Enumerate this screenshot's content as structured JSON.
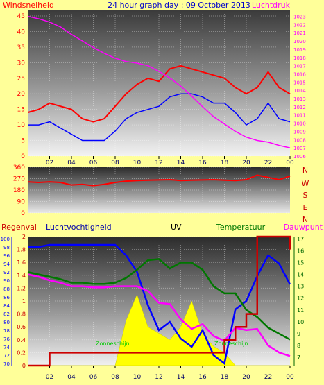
{
  "title": "24 hour graph day : 09 October 2013",
  "colors": {
    "background": "#ffff99",
    "red": "#ff0000",
    "magenta": "#ff00ff",
    "blue": "#0000ff",
    "green": "#007700",
    "darkred": "#cc0000",
    "yellow": "#ffff00",
    "black": "#000000"
  },
  "x_ticks": [
    "02",
    "04",
    "06",
    "08",
    "10",
    "12",
    "14",
    "16",
    "18",
    "20",
    "22",
    "00"
  ],
  "chart_data": [
    {
      "type": "line",
      "name": "wind-pressure",
      "left_label": "Windsnelheid",
      "right_label": "Luchtdruk",
      "left_ticks": [
        0,
        5,
        10,
        15,
        20,
        25,
        30,
        35,
        40,
        45
      ],
      "right_ticks": [
        1006,
        1007,
        1008,
        1009,
        1010,
        1011,
        1012,
        1013,
        1014,
        1015,
        1016,
        1017,
        1018,
        1019,
        1020,
        1021,
        1022,
        1023
      ],
      "ylim_left": [
        0,
        47
      ],
      "ylim_right": [
        1006,
        1023.8
      ],
      "x": [
        0,
        1,
        2,
        3,
        4,
        5,
        6,
        7,
        8,
        9,
        10,
        11,
        12,
        13,
        14,
        15,
        16,
        17,
        18,
        19,
        20,
        21,
        22,
        23,
        24
      ],
      "series": [
        {
          "axis": "left",
          "color": "red",
          "values": [
            14,
            15,
            17,
            16,
            15,
            12,
            11,
            12,
            16,
            20,
            23,
            25,
            24,
            28,
            29,
            28,
            27,
            26,
            25,
            22,
            20,
            22,
            27,
            22,
            20
          ]
        },
        {
          "axis": "left",
          "color": "blue",
          "values": [
            10,
            10,
            11,
            9,
            7,
            5,
            5,
            5,
            8,
            12,
            14,
            15,
            16,
            19,
            20,
            20,
            19,
            17,
            17,
            14,
            10,
            12,
            17,
            12,
            11
          ]
        },
        {
          "axis": "right",
          "color": "magenta",
          "values": [
            1023,
            1022.7,
            1022.3,
            1021.7,
            1020.8,
            1020,
            1019.2,
            1018.5,
            1017.9,
            1017.5,
            1017.3,
            1017,
            1016.3,
            1015.5,
            1014.5,
            1013.3,
            1012,
            1010.8,
            1009.9,
            1009,
            1008.3,
            1007.9,
            1007.7,
            1007.3,
            1007
          ]
        }
      ]
    },
    {
      "type": "line",
      "name": "wind-direction",
      "left_ticks": [
        0,
        90,
        180,
        270,
        360
      ],
      "right_ticks": [
        "N",
        "W",
        "S",
        "E",
        "N"
      ],
      "ylim": [
        0,
        360
      ],
      "x": [
        0,
        1,
        2,
        3,
        4,
        5,
        6,
        7,
        8,
        9,
        10,
        11,
        12,
        13,
        14,
        15,
        16,
        17,
        18,
        19,
        20,
        21,
        22,
        23,
        24
      ],
      "series": [
        {
          "color": "red",
          "values": [
            245,
            240,
            245,
            240,
            220,
            225,
            215,
            225,
            240,
            250,
            255,
            258,
            260,
            262,
            255,
            258,
            260,
            262,
            258,
            255,
            262,
            298,
            280,
            262,
            290
          ]
        }
      ]
    },
    {
      "type": "line",
      "name": "humidity-rain-uv-temperature",
      "labels": {
        "rain": "Regenval",
        "humidity": "Luchtvochtigheid",
        "uv": "UV",
        "temperature": "Temperatuur",
        "dewpoint": "Dauwpunt"
      },
      "rain_ticks": [
        0,
        0.2,
        0.4,
        0.6,
        0.8,
        1,
        1.2,
        1.4,
        1.6,
        1.8,
        2
      ],
      "humidity_ticks": [
        70,
        72,
        74,
        76,
        78,
        80,
        82,
        84,
        86,
        88,
        90,
        92,
        94,
        96,
        98,
        100
      ],
      "temperature_ticks": [
        7,
        8,
        9,
        10,
        11,
        12,
        13,
        14,
        15,
        16,
        17
      ],
      "ylim_humidity": [
        69.5,
        100.5
      ],
      "ylim_temperature": [
        6.3,
        17.2
      ],
      "ylim_rain": [
        0,
        2
      ],
      "annotations": [
        "Zonneschijn",
        "Zonneschijn"
      ],
      "x": [
        0,
        1,
        2,
        3,
        4,
        5,
        6,
        7,
        8,
        9,
        10,
        11,
        12,
        13,
        14,
        15,
        16,
        17,
        18,
        19,
        20,
        21,
        22,
        23,
        24
      ],
      "series": [
        {
          "name": "Luchtvochtigheid",
          "axis": "humidity",
          "color": "blue",
          "values": [
            98,
            98,
            98.5,
            98.5,
            98.5,
            98.5,
            98.5,
            98.5,
            98.5,
            96,
            92,
            84,
            78,
            80,
            76,
            74,
            78,
            72,
            70,
            83,
            85,
            91,
            96,
            94,
            89
          ]
        },
        {
          "name": "Temperatuur",
          "axis": "temperature",
          "color": "green",
          "values": [
            14.2,
            14,
            13.8,
            13.6,
            13.3,
            13.3,
            13.2,
            13.2,
            13.3,
            13.7,
            14.4,
            15.2,
            15.3,
            14.5,
            15,
            15,
            14.4,
            13,
            12.4,
            12.4,
            11,
            10.4,
            9.5,
            9,
            8.5
          ]
        },
        {
          "name": "Dauwpunt",
          "axis": "temperature",
          "color": "magenta",
          "values": [
            14,
            13.8,
            13.5,
            13.3,
            13,
            13,
            12.9,
            12.9,
            13,
            13,
            13,
            12.6,
            11.6,
            11.5,
            10.2,
            9.4,
            9.8,
            8.8,
            8.4,
            9.5,
            9.3,
            9.4,
            8,
            7.4,
            7.1
          ]
        },
        {
          "name": "Regenval",
          "axis": "rain",
          "color": "darkred",
          "step": true,
          "values": [
            0,
            0,
            0.2,
            0.2,
            0.2,
            0.2,
            0.2,
            0.2,
            0.2,
            0.2,
            0.2,
            0.2,
            0.2,
            0.2,
            0.2,
            0.2,
            0.2,
            0.2,
            0.4,
            0.6,
            0.8,
            2,
            2,
            2,
            1.8
          ]
        },
        {
          "name": "UV",
          "axis": "rain",
          "color": "yellow",
          "fill": true,
          "values": [
            0,
            0,
            0,
            0,
            0,
            0,
            0,
            0,
            0,
            0.7,
            1.1,
            0.6,
            0.5,
            0.4,
            0.6,
            1,
            0.5,
            0.3,
            0.2,
            0,
            0,
            0,
            0,
            0,
            0
          ]
        }
      ]
    }
  ]
}
